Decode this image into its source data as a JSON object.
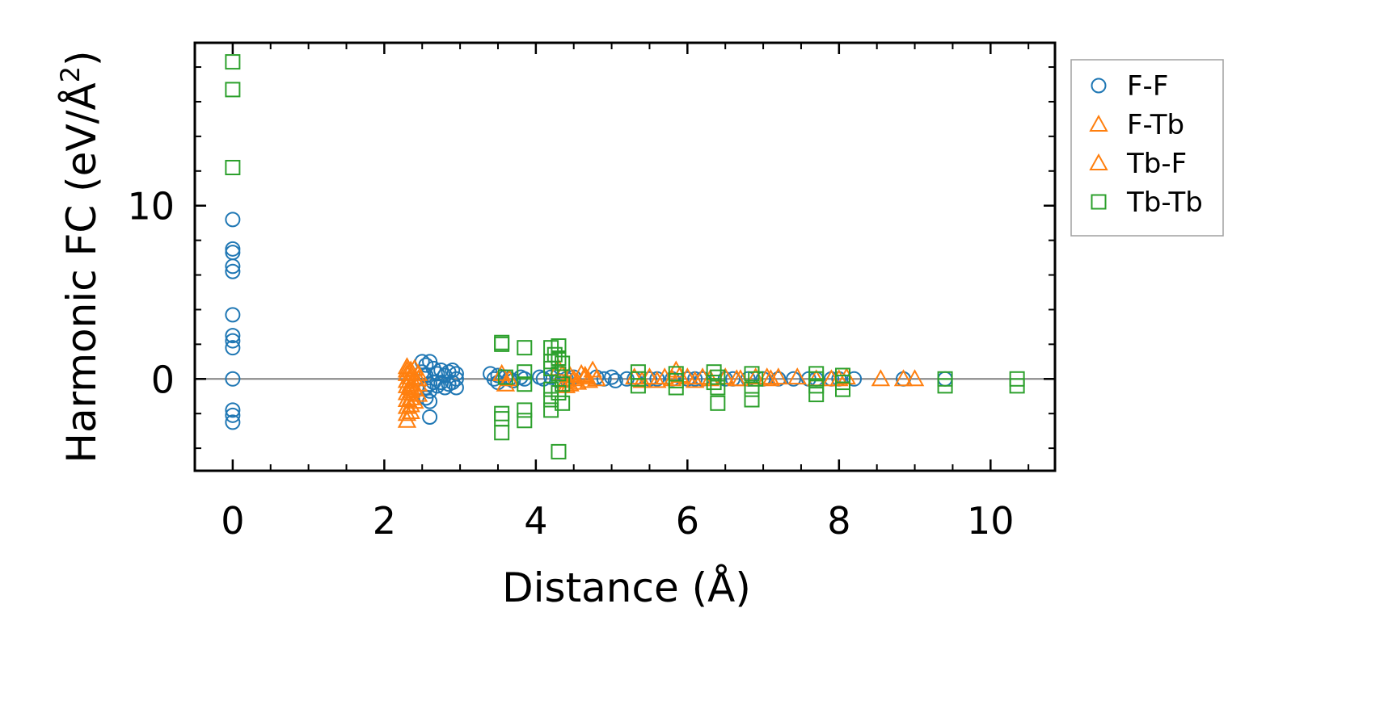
{
  "chart_data": {
    "type": "scatter",
    "title": "",
    "xlabel": "Distance (Å)",
    "ylabel_main": "Harmonic FC (eV/Å",
    "ylabel_sup": "2",
    "ylabel_close": ")",
    "xlim": [
      -0.5,
      10.85
    ],
    "ylim": [
      -5.3,
      19.4
    ],
    "xticks": [
      0,
      2,
      4,
      6,
      8,
      10
    ],
    "xtick_labels": [
      "0",
      "2",
      "4",
      "6",
      "8",
      "10"
    ],
    "xminor_step": 0.5,
    "yticks": [
      0,
      10
    ],
    "ytick_labels": [
      "0",
      "10"
    ],
    "yminor_step": 2,
    "hline": 0,
    "grid": false,
    "legend_position": "outside-top-right",
    "series": [
      {
        "name": "F-F",
        "marker": "circle",
        "color": "#1f77b4",
        "points": [
          [
            0.0,
            9.2
          ],
          [
            0.0,
            7.5
          ],
          [
            0.0,
            7.3
          ],
          [
            0.0,
            6.5
          ],
          [
            0.0,
            6.2
          ],
          [
            0.0,
            3.7
          ],
          [
            0.0,
            2.5
          ],
          [
            0.0,
            2.2
          ],
          [
            0.0,
            1.8
          ],
          [
            0.0,
            0.0
          ],
          [
            0.0,
            -1.8
          ],
          [
            0.0,
            -2.1
          ],
          [
            0.0,
            -2.5
          ],
          [
            2.5,
            1.0
          ],
          [
            2.55,
            0.8
          ],
          [
            2.6,
            1.0
          ],
          [
            2.5,
            0.4
          ],
          [
            2.55,
            0.2
          ],
          [
            2.6,
            -0.3
          ],
          [
            2.55,
            -0.5
          ],
          [
            2.6,
            -0.7
          ],
          [
            2.55,
            -1.1
          ],
          [
            2.6,
            -1.3
          ],
          [
            2.6,
            -2.2
          ],
          [
            2.65,
            0.6
          ],
          [
            2.7,
            0.3
          ],
          [
            2.65,
            -0.2
          ],
          [
            2.7,
            -0.4
          ],
          [
            2.75,
            0.5
          ],
          [
            2.8,
            0.2
          ],
          [
            2.75,
            -0.2
          ],
          [
            2.8,
            -0.5
          ],
          [
            2.85,
            0.4
          ],
          [
            2.85,
            -0.3
          ],
          [
            2.9,
            0.5
          ],
          [
            2.9,
            -0.2
          ],
          [
            2.95,
            0.3
          ],
          [
            2.95,
            -0.5
          ],
          [
            2.95,
            0.0
          ],
          [
            3.4,
            0.3
          ],
          [
            3.45,
            0.0
          ],
          [
            3.5,
            0.2
          ],
          [
            3.5,
            -0.2
          ],
          [
            3.6,
            0.1
          ],
          [
            3.65,
            0.0
          ],
          [
            3.7,
            -0.1
          ],
          [
            3.8,
            0.1
          ],
          [
            3.85,
            0.0
          ],
          [
            4.05,
            0.1
          ],
          [
            4.1,
            0.0
          ],
          [
            4.2,
            0.1
          ],
          [
            4.3,
            -0.1
          ],
          [
            4.4,
            0.0
          ],
          [
            4.5,
            0.1
          ],
          [
            4.8,
            0.1
          ],
          [
            4.9,
            0.0
          ],
          [
            5.0,
            0.1
          ],
          [
            5.05,
            -0.1
          ],
          [
            5.2,
            0.0
          ],
          [
            5.3,
            0.0
          ],
          [
            5.5,
            0.0
          ],
          [
            5.6,
            0.0
          ],
          [
            5.8,
            0.0
          ],
          [
            6.0,
            0.0
          ],
          [
            6.1,
            0.0
          ],
          [
            6.2,
            0.0
          ],
          [
            6.5,
            0.0
          ],
          [
            6.6,
            0.0
          ],
          [
            6.8,
            0.0
          ],
          [
            7.0,
            0.0
          ],
          [
            7.2,
            0.0
          ],
          [
            7.4,
            0.0
          ],
          [
            7.6,
            0.0
          ],
          [
            7.7,
            0.0
          ],
          [
            7.9,
            0.0
          ],
          [
            8.0,
            0.0
          ],
          [
            8.2,
            0.0
          ],
          [
            8.85,
            0.0
          ],
          [
            9.4,
            0.0
          ]
        ]
      },
      {
        "name": "F-Tb",
        "marker": "triangle",
        "color": "#ff7f0e",
        "points": [
          [
            2.3,
            0.7
          ],
          [
            2.3,
            0.3
          ],
          [
            2.3,
            -0.1
          ],
          [
            2.3,
            -0.4
          ],
          [
            2.3,
            -0.8
          ],
          [
            2.3,
            -1.2
          ],
          [
            2.3,
            -1.6
          ],
          [
            2.3,
            -2.0
          ],
          [
            2.3,
            -2.4
          ],
          [
            2.35,
            0.5
          ],
          [
            2.35,
            0.1
          ],
          [
            2.35,
            -0.3
          ],
          [
            2.35,
            -0.7
          ],
          [
            2.35,
            -1.1
          ],
          [
            2.35,
            -1.5
          ],
          [
            2.35,
            -1.9
          ],
          [
            2.4,
            0.6
          ],
          [
            2.4,
            0.0
          ],
          [
            2.4,
            -0.6
          ],
          [
            2.45,
            0.3
          ],
          [
            2.45,
            -0.3
          ],
          [
            2.45,
            -0.9
          ],
          [
            3.55,
            0.3
          ],
          [
            3.6,
            -0.3
          ],
          [
            3.65,
            0.0
          ],
          [
            4.3,
            0.6
          ],
          [
            4.35,
            0.3
          ],
          [
            4.4,
            -0.1
          ],
          [
            4.4,
            -0.4
          ],
          [
            4.45,
            0.2
          ],
          [
            4.5,
            0.0
          ],
          [
            4.55,
            -0.2
          ],
          [
            4.6,
            0.3
          ],
          [
            4.65,
            0.1
          ],
          [
            4.7,
            -0.1
          ],
          [
            4.75,
            0.5
          ],
          [
            4.8,
            0.0
          ],
          [
            5.3,
            0.1
          ],
          [
            5.4,
            -0.1
          ],
          [
            5.5,
            0.1
          ],
          [
            5.6,
            -0.1
          ],
          [
            5.7,
            0.1
          ],
          [
            5.8,
            0.0
          ],
          [
            5.85,
            0.5
          ],
          [
            6.0,
            0.1
          ],
          [
            6.1,
            -0.1
          ],
          [
            6.2,
            0.1
          ],
          [
            6.3,
            0.0
          ],
          [
            6.5,
            0.1
          ],
          [
            6.7,
            0.0
          ],
          [
            6.9,
            0.1
          ],
          [
            7.1,
            0.0
          ],
          [
            7.2,
            0.1
          ],
          [
            7.45,
            0.1
          ],
          [
            7.7,
            0.0
          ],
          [
            8.0,
            0.0
          ],
          [
            8.1,
            0.1
          ],
          [
            8.55,
            0.0
          ],
          [
            8.85,
            0.0
          ],
          [
            9.0,
            0.0
          ]
        ]
      },
      {
        "name": "Tb-F",
        "marker": "triangle",
        "color": "#ff7f0e",
        "points": [
          [
            2.3,
            0.5
          ],
          [
            2.35,
            -0.5
          ],
          [
            2.4,
            -1.3
          ],
          [
            2.45,
            0.0
          ],
          [
            4.45,
            -0.3
          ],
          [
            4.65,
            0.2
          ],
          [
            5.9,
            0.2
          ],
          [
            6.65,
            0.0
          ],
          [
            7.05,
            0.1
          ],
          [
            7.9,
            0.0
          ]
        ]
      },
      {
        "name": "Tb-Tb",
        "marker": "square",
        "color": "#2ca02c",
        "points": [
          [
            0.0,
            18.3
          ],
          [
            0.0,
            16.7
          ],
          [
            0.0,
            12.2
          ],
          [
            3.55,
            2.1
          ],
          [
            3.55,
            2.0
          ],
          [
            3.6,
            0.1
          ],
          [
            3.55,
            -2.0
          ],
          [
            3.55,
            -2.3
          ],
          [
            3.55,
            -3.1
          ],
          [
            3.85,
            1.8
          ],
          [
            3.85,
            0.4
          ],
          [
            3.85,
            -0.3
          ],
          [
            3.85,
            -1.8
          ],
          [
            3.85,
            -2.4
          ],
          [
            4.2,
            1.8
          ],
          [
            4.25,
            1.4
          ],
          [
            4.2,
            1.0
          ],
          [
            4.2,
            0.6
          ],
          [
            4.2,
            -0.6
          ],
          [
            4.2,
            -1.2
          ],
          [
            4.2,
            -1.8
          ],
          [
            4.3,
            1.9
          ],
          [
            4.3,
            1.2
          ],
          [
            4.35,
            0.9
          ],
          [
            4.3,
            0.3
          ],
          [
            4.35,
            -0.3
          ],
          [
            4.3,
            -0.8
          ],
          [
            4.35,
            -1.4
          ],
          [
            4.3,
            -4.2
          ],
          [
            5.35,
            0.4
          ],
          [
            5.35,
            0.0
          ],
          [
            5.35,
            -0.4
          ],
          [
            5.85,
            0.3
          ],
          [
            5.85,
            -0.1
          ],
          [
            5.85,
            -0.5
          ],
          [
            6.35,
            0.4
          ],
          [
            6.4,
            0.1
          ],
          [
            6.35,
            -0.2
          ],
          [
            6.4,
            -0.5
          ],
          [
            6.4,
            -1.4
          ],
          [
            6.85,
            0.3
          ],
          [
            6.9,
            0.0
          ],
          [
            6.85,
            -0.6
          ],
          [
            6.85,
            -1.2
          ],
          [
            7.7,
            0.3
          ],
          [
            7.7,
            0.0
          ],
          [
            7.7,
            -0.4
          ],
          [
            7.7,
            -0.9
          ],
          [
            8.05,
            0.2
          ],
          [
            8.05,
            -0.2
          ],
          [
            8.05,
            -0.6
          ],
          [
            9.4,
            0.0
          ],
          [
            9.4,
            -0.4
          ],
          [
            10.35,
            0.0
          ],
          [
            10.35,
            -0.4
          ]
        ]
      }
    ]
  },
  "legend": {
    "entries": [
      {
        "label": "F-F",
        "marker": "circle",
        "color": "#1f77b4"
      },
      {
        "label": "F-Tb",
        "marker": "triangle",
        "color": "#ff7f0e"
      },
      {
        "label": "Tb-F",
        "marker": "triangle",
        "color": "#ff7f0e"
      },
      {
        "label": "Tb-Tb",
        "marker": "square",
        "color": "#2ca02c"
      }
    ]
  }
}
